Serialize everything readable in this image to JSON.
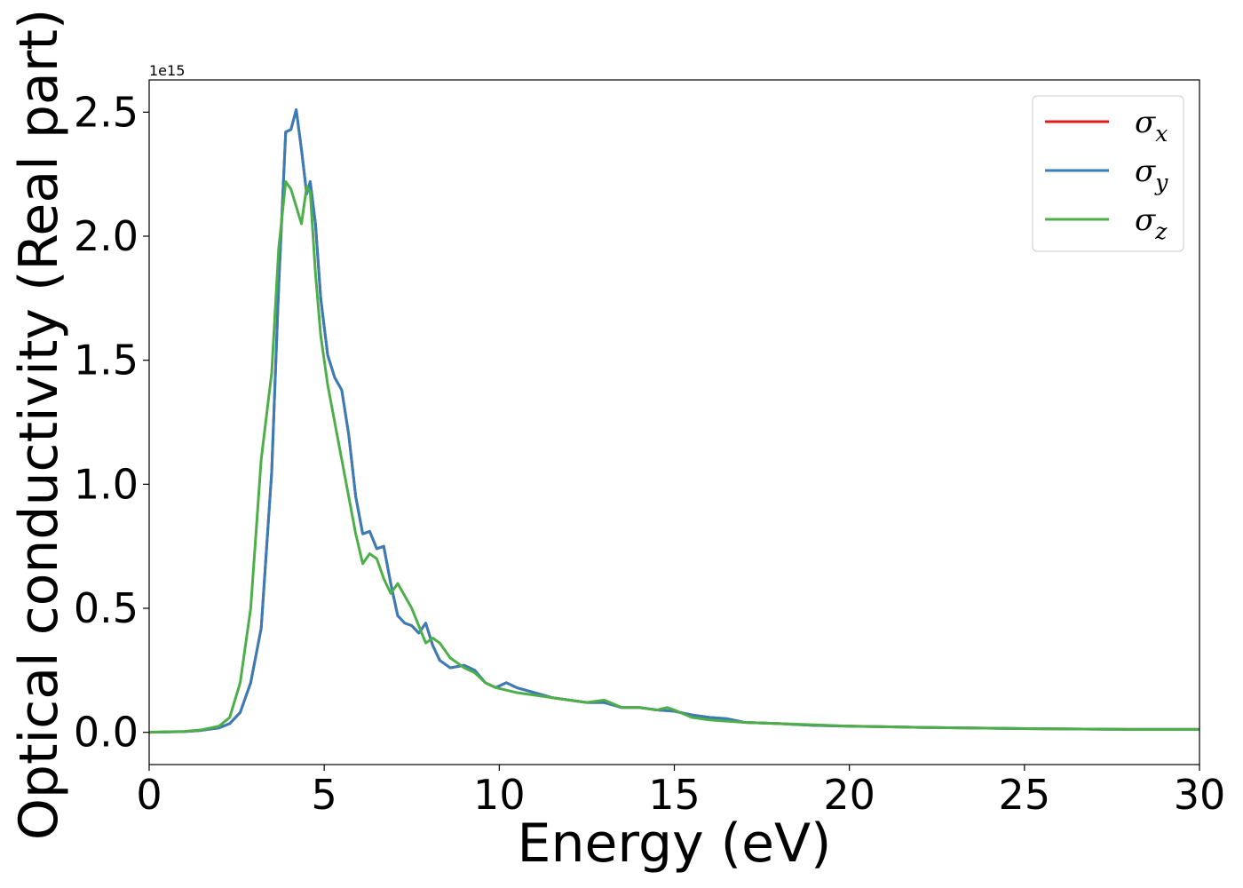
{
  "chart_data": {
    "type": "line",
    "xlabel": "Energy (eV)",
    "ylabel": "Optical conductivity (Real part)",
    "y_offset_label": "1e15",
    "xlim": [
      0,
      30
    ],
    "ylim": [
      -0.13,
      2.63
    ],
    "x_ticks": [
      0,
      5,
      10,
      15,
      20,
      25,
      30
    ],
    "x_tick_labels": [
      "0",
      "5",
      "10",
      "15",
      "20",
      "25",
      "30"
    ],
    "y_ticks": [
      0.0,
      0.5,
      1.0,
      1.5,
      2.0,
      2.5
    ],
    "y_tick_labels": [
      "0.0",
      "0.5",
      "1.0",
      "1.5",
      "2.0",
      "2.5"
    ],
    "grid": false,
    "legend_position": "top-right",
    "series": [
      {
        "name": "σx",
        "symbol": "σ",
        "subscript": "x",
        "color": "#e41a1c",
        "x": [
          0,
          1,
          1.5,
          2,
          2.3,
          2.6,
          2.9,
          3.2,
          3.5,
          3.7,
          3.9,
          4.05,
          4.2,
          4.35,
          4.5,
          4.6,
          4.75,
          4.9,
          5.1,
          5.3,
          5.5,
          5.7,
          5.9,
          6.1,
          6.3,
          6.5,
          6.7,
          6.9,
          7.1,
          7.3,
          7.5,
          7.7,
          7.9,
          8.1,
          8.3,
          8.6,
          9.0,
          9.3,
          9.6,
          9.9,
          10.2,
          10.5,
          11.0,
          11.5,
          12.0,
          12.5,
          13.0,
          13.5,
          14.0,
          14.5,
          15.0,
          15.5,
          16.0,
          16.5,
          17.0,
          18.0,
          19.0,
          20.0,
          22.0,
          25.0,
          28.0,
          30.0
        ],
        "y": [
          0.0,
          0.003,
          0.008,
          0.018,
          0.035,
          0.08,
          0.2,
          0.42,
          1.05,
          1.8,
          2.42,
          2.43,
          2.51,
          2.35,
          2.17,
          2.22,
          2.05,
          1.75,
          1.52,
          1.43,
          1.38,
          1.2,
          0.95,
          0.8,
          0.81,
          0.74,
          0.75,
          0.6,
          0.47,
          0.44,
          0.43,
          0.4,
          0.44,
          0.35,
          0.29,
          0.26,
          0.27,
          0.25,
          0.2,
          0.18,
          0.2,
          0.18,
          0.16,
          0.14,
          0.13,
          0.12,
          0.12,
          0.1,
          0.1,
          0.09,
          0.085,
          0.07,
          0.06,
          0.055,
          0.04,
          0.035,
          0.028,
          0.025,
          0.02,
          0.015,
          0.012,
          0.012
        ]
      },
      {
        "name": "σy",
        "symbol": "σ",
        "subscript": "y",
        "color": "#377eb8",
        "x": [
          0,
          1,
          1.5,
          2,
          2.3,
          2.6,
          2.9,
          3.2,
          3.5,
          3.7,
          3.9,
          4.05,
          4.2,
          4.35,
          4.5,
          4.6,
          4.75,
          4.9,
          5.1,
          5.3,
          5.5,
          5.7,
          5.9,
          6.1,
          6.3,
          6.5,
          6.7,
          6.9,
          7.1,
          7.3,
          7.5,
          7.7,
          7.9,
          8.1,
          8.3,
          8.6,
          9.0,
          9.3,
          9.6,
          9.9,
          10.2,
          10.5,
          11.0,
          11.5,
          12.0,
          12.5,
          13.0,
          13.5,
          14.0,
          14.5,
          15.0,
          15.5,
          16.0,
          16.5,
          17.0,
          18.0,
          19.0,
          20.0,
          22.0,
          25.0,
          28.0,
          30.0
        ],
        "y": [
          0.0,
          0.003,
          0.008,
          0.018,
          0.035,
          0.08,
          0.2,
          0.42,
          1.05,
          1.8,
          2.42,
          2.43,
          2.51,
          2.35,
          2.17,
          2.22,
          2.05,
          1.75,
          1.52,
          1.43,
          1.38,
          1.2,
          0.95,
          0.8,
          0.81,
          0.74,
          0.75,
          0.6,
          0.47,
          0.44,
          0.43,
          0.4,
          0.44,
          0.35,
          0.29,
          0.26,
          0.27,
          0.25,
          0.2,
          0.18,
          0.2,
          0.18,
          0.16,
          0.14,
          0.13,
          0.12,
          0.12,
          0.1,
          0.1,
          0.09,
          0.085,
          0.07,
          0.06,
          0.055,
          0.04,
          0.035,
          0.028,
          0.025,
          0.02,
          0.015,
          0.012,
          0.012
        ]
      },
      {
        "name": "σz",
        "symbol": "σ",
        "subscript": "z",
        "color": "#4daf4a",
        "x": [
          0,
          1,
          1.5,
          2,
          2.3,
          2.6,
          2.9,
          3.2,
          3.5,
          3.7,
          3.9,
          4.05,
          4.2,
          4.35,
          4.5,
          4.6,
          4.75,
          4.9,
          5.1,
          5.3,
          5.5,
          5.7,
          5.9,
          6.1,
          6.3,
          6.5,
          6.7,
          6.9,
          7.1,
          7.3,
          7.5,
          7.7,
          7.9,
          8.1,
          8.3,
          8.6,
          9.0,
          9.3,
          9.6,
          9.9,
          10.2,
          10.5,
          11.0,
          11.5,
          12.0,
          12.5,
          13.0,
          13.5,
          14.0,
          14.5,
          14.8,
          15.0,
          15.5,
          16.0,
          16.5,
          17.0,
          18.0,
          19.0,
          20.0,
          22.0,
          25.0,
          28.0,
          30.0
        ],
        "y": [
          0.0,
          0.004,
          0.01,
          0.025,
          0.06,
          0.2,
          0.5,
          1.1,
          1.45,
          1.95,
          2.22,
          2.19,
          2.12,
          2.05,
          2.2,
          2.18,
          1.85,
          1.6,
          1.4,
          1.25,
          1.1,
          0.95,
          0.8,
          0.68,
          0.72,
          0.7,
          0.62,
          0.56,
          0.6,
          0.55,
          0.5,
          0.43,
          0.36,
          0.38,
          0.36,
          0.3,
          0.26,
          0.24,
          0.2,
          0.18,
          0.17,
          0.16,
          0.15,
          0.14,
          0.13,
          0.12,
          0.13,
          0.1,
          0.1,
          0.09,
          0.1,
          0.09,
          0.06,
          0.05,
          0.045,
          0.04,
          0.035,
          0.03,
          0.025,
          0.02,
          0.015,
          0.012,
          0.012
        ]
      }
    ]
  }
}
